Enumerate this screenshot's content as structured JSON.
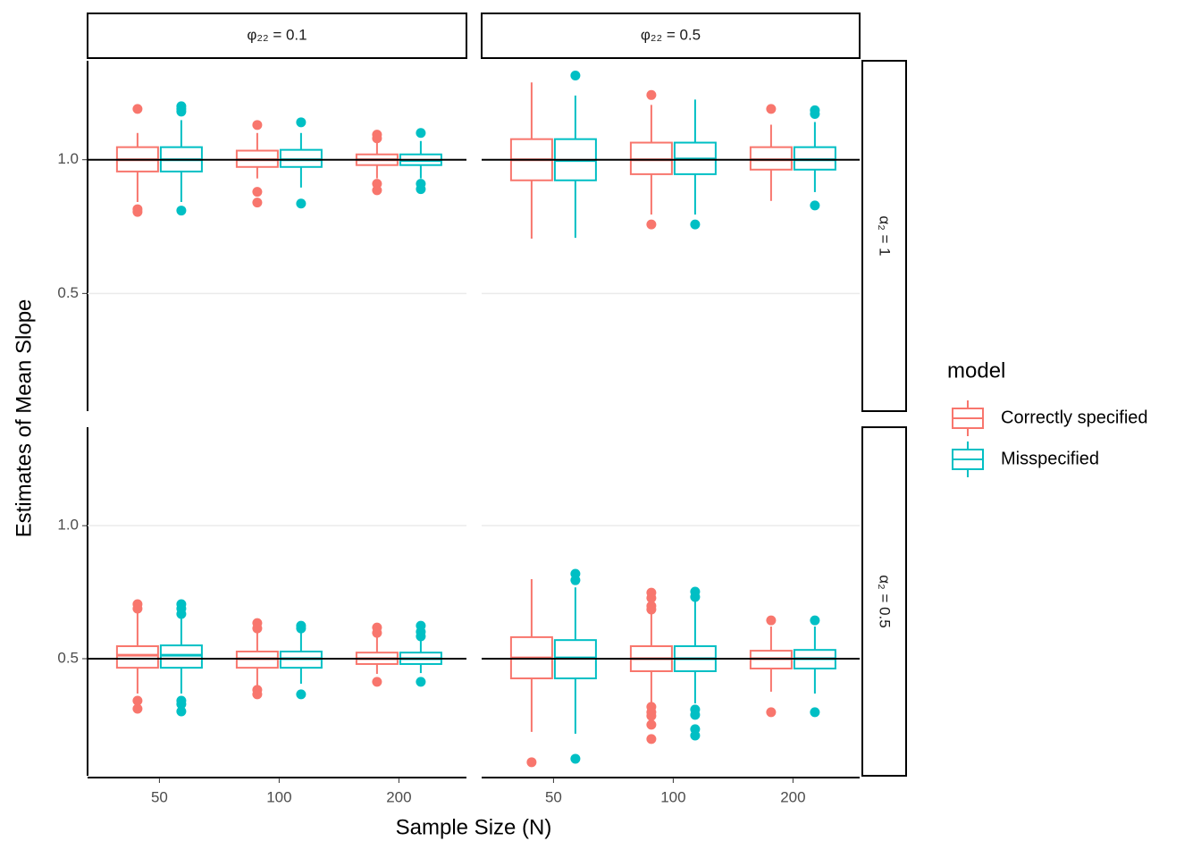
{
  "chart_data": {
    "type": "box",
    "x_label": "Sample Size (N)",
    "y_label": "Estimates of Mean Slope",
    "legend_title": "model",
    "legend_position": "right",
    "categories": [
      "50",
      "100",
      "200"
    ],
    "facet_columns": [
      "φ₂₂ = 0.1",
      "φ₂₂ = 0.5"
    ],
    "facet_rows": [
      "α₂ = 1",
      "α₂ = 0.5"
    ],
    "ylim": [
      0.06,
      1.37
    ],
    "yticks": [
      0.5,
      {
        "value": 1,
        "label": "1.0"
      }
    ],
    "grid": true,
    "series": [
      {
        "name": "Correctly specified",
        "color": "#F8766D"
      },
      {
        "name": "Misspecified",
        "color": "#00BFC4"
      }
    ],
    "panels": [
      [
        {
          "reference": 1,
          "boxes": [
            [
              {
                "low": 0.842,
                "q1": 0.956,
                "median": 1.0,
                "q3": 1.047,
                "high": 1.1,
                "outliers": [
                  1.19,
                  0.815,
                  0.805
                ]
              },
              {
                "low": 0.93,
                "q1": 0.973,
                "median": 1.0,
                "q3": 1.034,
                "high": 1.1,
                "outliers": [
                  1.13,
                  0.88,
                  0.84
                ]
              },
              {
                "low": 0.93,
                "q1": 0.98,
                "median": 1.0,
                "q3": 1.02,
                "high": 1.064,
                "outliers": [
                  1.094,
                  1.08,
                  0.91,
                  0.886
                ]
              }
            ],
            [
              {
                "low": 0.842,
                "q1": 0.956,
                "median": 1.0,
                "q3": 1.047,
                "high": 1.148,
                "outliers": [
                  1.2,
                  1.19,
                  1.18,
                  0.81
                ]
              },
              {
                "low": 0.896,
                "q1": 0.973,
                "median": 1.0,
                "q3": 1.037,
                "high": 1.1,
                "outliers": [
                  1.14,
                  0.836
                ]
              },
              {
                "low": 0.93,
                "q1": 0.98,
                "median": 0.997,
                "q3": 1.02,
                "high": 1.07,
                "outliers": [
                  1.1,
                  0.91,
                  0.89
                ]
              }
            ]
          ]
        },
        {
          "reference": 1,
          "boxes": [
            [
              {
                "low": 0.705,
                "q1": 0.923,
                "median": 1.0,
                "q3": 1.077,
                "high": 1.289,
                "outliers": []
              },
              {
                "low": 0.795,
                "q1": 0.946,
                "median": 1.0,
                "q3": 1.064,
                "high": 1.205,
                "outliers": [
                  1.242,
                  0.758
                ]
              },
              {
                "low": 0.846,
                "q1": 0.963,
                "median": 1.0,
                "q3": 1.047,
                "high": 1.131,
                "outliers": [
                  1.19
                ]
              }
            ],
            [
              {
                "low": 0.708,
                "q1": 0.923,
                "median": 0.997,
                "q3": 1.077,
                "high": 1.24,
                "outliers": [
                  1.315
                ]
              },
              {
                "low": 0.795,
                "q1": 0.946,
                "median": 1.003,
                "q3": 1.064,
                "high": 1.225,
                "outliers": [
                  0.758
                ]
              },
              {
                "low": 0.879,
                "q1": 0.963,
                "median": 1.0,
                "q3": 1.047,
                "high": 1.141,
                "outliers": [
                  1.185,
                  1.171,
                  0.829
                ]
              }
            ]
          ]
        }
      ],
      [
        {
          "reference": 0.5,
          "boxes": [
            [
              {
                "low": 0.369,
                "q1": 0.466,
                "median": 0.513,
                "q3": 0.547,
                "high": 0.671,
                "outliers": [
                  0.705,
                  0.688,
                  0.342,
                  0.312
                ]
              },
              {
                "low": 0.4,
                "q1": 0.466,
                "median": 0.5,
                "q3": 0.527,
                "high": 0.604,
                "outliers": [
                  0.634,
                  0.614,
                  0.383,
                  0.366
                ]
              },
              {
                "low": 0.443,
                "q1": 0.48,
                "median": 0.5,
                "q3": 0.523,
                "high": 0.594,
                "outliers": [
                  0.617,
                  0.597,
                  0.413
                ]
              }
            ],
            [
              {
                "low": 0.369,
                "q1": 0.466,
                "median": 0.513,
                "q3": 0.55,
                "high": 0.661,
                "outliers": [
                  0.705,
                  0.688,
                  0.668,
                  0.342,
                  0.329,
                  0.302
                ]
              },
              {
                "low": 0.406,
                "q1": 0.466,
                "median": 0.5,
                "q3": 0.527,
                "high": 0.601,
                "outliers": [
                  0.624,
                  0.614,
                  0.366
                ]
              },
              {
                "low": 0.446,
                "q1": 0.48,
                "median": 0.5,
                "q3": 0.523,
                "high": 0.587,
                "outliers": [
                  0.624,
                  0.601,
                  0.584,
                  0.413
                ]
              }
            ]
          ]
        },
        {
          "reference": 0.5,
          "boxes": [
            [
              {
                "low": 0.225,
                "q1": 0.426,
                "median": 0.503,
                "q3": 0.581,
                "high": 0.799,
                "outliers": [
                  0.111
                ]
              },
              {
                "low": 0.332,
                "q1": 0.453,
                "median": 0.5,
                "q3": 0.547,
                "high": 0.721,
                "outliers": [
                  0.748,
                  0.728,
                  0.698,
                  0.685,
                  0.319,
                  0.299,
                  0.285,
                  0.252,
                  0.198
                ]
              },
              {
                "low": 0.376,
                "q1": 0.463,
                "median": 0.5,
                "q3": 0.53,
                "high": 0.621,
                "outliers": [
                  0.644,
                  0.299
                ]
              }
            ],
            [
              {
                "low": 0.218,
                "q1": 0.426,
                "median": 0.503,
                "q3": 0.57,
                "high": 0.768,
                "outliers": [
                  0.819,
                  0.795,
                  0.124
                ]
              },
              {
                "low": 0.332,
                "q1": 0.453,
                "median": 0.5,
                "q3": 0.547,
                "high": 0.721,
                "outliers": [
                  0.752,
                  0.732,
                  0.309,
                  0.289,
                  0.235,
                  0.211
                ]
              },
              {
                "low": 0.369,
                "q1": 0.463,
                "median": 0.5,
                "q3": 0.533,
                "high": 0.621,
                "outliers": [
                  0.644,
                  0.299
                ]
              }
            ]
          ]
        }
      ]
    ]
  }
}
